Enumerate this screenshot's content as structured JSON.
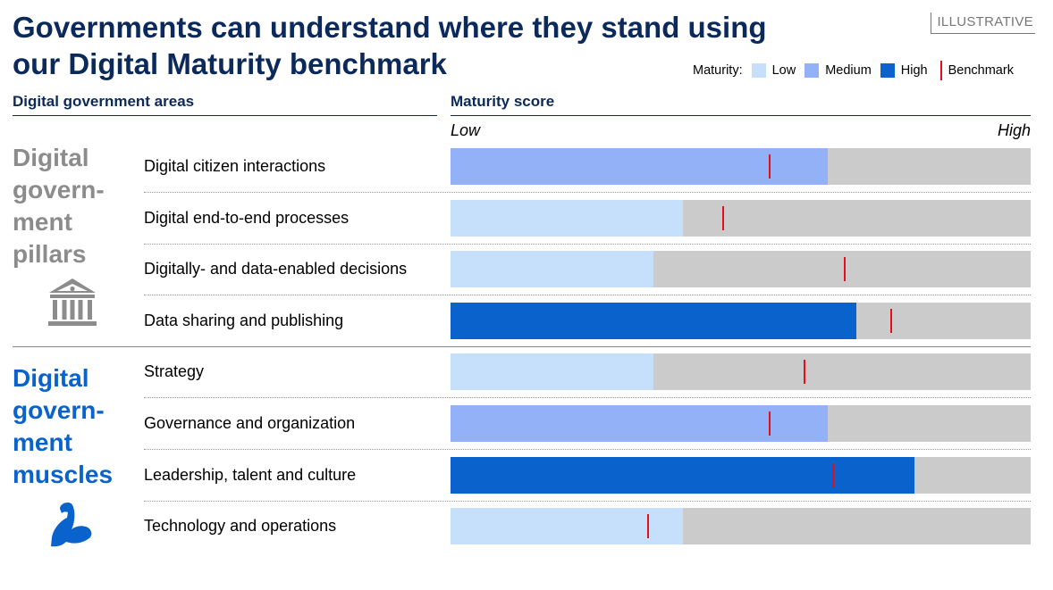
{
  "header": {
    "title_line1": "Governments can understand where they stand using",
    "title_line2": "our Digital Maturity benchmark",
    "tag": "ILLUSTRATIVE"
  },
  "legend": {
    "prefix": "Maturity:",
    "low": "Low",
    "medium": "Medium",
    "high": "High",
    "benchmark": "Benchmark"
  },
  "columns": {
    "areas": "Digital government areas",
    "score": "Maturity score"
  },
  "scale": {
    "low": "Low",
    "high": "High"
  },
  "colors": {
    "low": "#c6dffa",
    "medium": "#92b1f7",
    "high": "#0a62cc",
    "track": "#cbcbcb",
    "benchmark": "#e2101a",
    "pillars_text": "#8c8c8c",
    "muscles_text": "#0a62cc",
    "title": "#0b2a5b"
  },
  "groups": [
    {
      "lines": [
        "Digital",
        "govern-",
        "ment",
        "pillars"
      ],
      "icon": "government-building-icon"
    },
    {
      "lines": [
        "Digital",
        "govern-",
        "ment",
        "muscles"
      ],
      "icon": "flexed-bicep-icon"
    }
  ],
  "chart_data": {
    "type": "bar",
    "orientation": "horizontal",
    "title": "Maturity score",
    "xlabel": "",
    "ylabel": "Digital government areas",
    "xlim": [
      0,
      100
    ],
    "scale_labels": [
      "Low",
      "High"
    ],
    "categories": [
      "Digital citizen interactions",
      "Digital end-to-end processes",
      "Digitally- and data-enabled decisions",
      "Data sharing and publishing",
      "Strategy",
      "Governance and organization",
      "Leadership, talent and culture",
      "Technology and operations"
    ],
    "values": [
      65,
      40,
      35,
      70,
      35,
      65,
      80,
      40
    ],
    "levels": [
      "medium",
      "low",
      "low",
      "high",
      "low",
      "medium",
      "high",
      "low"
    ],
    "benchmark": [
      55,
      47,
      68,
      76,
      61,
      55,
      66,
      34
    ]
  }
}
